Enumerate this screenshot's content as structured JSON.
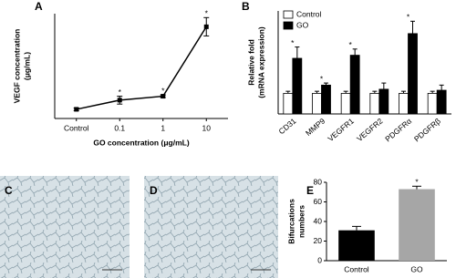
{
  "chart_data": [
    {
      "type": "line",
      "panel": "A",
      "ylabel": [
        "VEGF concentration",
        "(μg/mL)"
      ],
      "xlabel": "GO concentration (μg/mL)",
      "categories": [
        "Control",
        "0.1",
        "1",
        "10"
      ],
      "values": [
        7,
        14,
        17,
        70
      ],
      "errors": [
        1,
        3,
        1,
        7
      ],
      "significance": [
        null,
        "*",
        "*",
        "*"
      ],
      "color": "#000000",
      "ylim": [
        0,
        80
      ]
    },
    {
      "type": "grouped-bar",
      "panel": "B",
      "ylabel": [
        "Relative fold",
        "(mRNA expression)"
      ],
      "categories": [
        "CD31",
        "MMP9",
        "VEGFR1",
        "VEGFR2",
        "PDGFRα",
        "PDGFRβ"
      ],
      "series": [
        {
          "name": "Control",
          "color": "#ffffff",
          "values": [
            1,
            1,
            1,
            1,
            1,
            1
          ],
          "errors": [
            0.1,
            0.1,
            0.1,
            0.1,
            0.1,
            0.1
          ]
        },
        {
          "name": "GO",
          "color": "#000000",
          "values": [
            2.7,
            1.4,
            2.85,
            1.2,
            3.9,
            1.15
          ],
          "errors": [
            0.55,
            0.1,
            0.3,
            0.3,
            0.6,
            0.25
          ]
        }
      ],
      "significance": [
        "*",
        "*",
        "*",
        null,
        "*",
        null
      ],
      "ylim": [
        0,
        5
      ],
      "legend": "top-left"
    },
    {
      "type": "bar",
      "panel": "E",
      "ylabel": [
        "Bifurcations",
        "numbers"
      ],
      "categories": [
        "Control",
        "GO"
      ],
      "values": [
        31,
        73
      ],
      "errors": [
        4,
        3
      ],
      "colors": [
        "#000000",
        "#a6a6a6"
      ],
      "significance": [
        null,
        "*"
      ],
      "ylim": [
        0,
        80
      ],
      "yticks": [
        0,
        20,
        40,
        60,
        80
      ]
    }
  ],
  "images": [
    {
      "panel": "C"
    },
    {
      "panel": "D"
    }
  ]
}
